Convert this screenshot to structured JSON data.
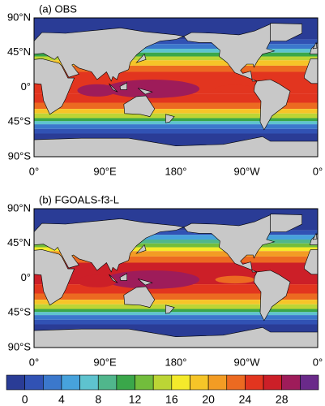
{
  "chart_data": {
    "type": "map",
    "panels": [
      {
        "title": "(a) OBS",
        "warm": 0
      },
      {
        "title": "(b) FGOALS-f3-L",
        "warm": 1
      }
    ],
    "lat_labels": [
      "90°N",
      "45°N",
      "0°",
      "45°S",
      "90°S"
    ],
    "lon_labels": [
      "0°",
      "90°E",
      "180°",
      "90°W",
      "0°"
    ],
    "colorbar": {
      "levels": [
        0,
        2,
        4,
        6,
        8,
        10,
        12,
        14,
        16,
        18,
        20,
        22,
        24,
        26,
        28,
        30
      ],
      "ticks": [
        0,
        4,
        8,
        12,
        16,
        20,
        24,
        28
      ],
      "colors": [
        "#2a3c96",
        "#3152b4",
        "#3b78cc",
        "#47a2dc",
        "#5ec3cf",
        "#50b68c",
        "#3aa74a",
        "#72bd3c",
        "#bcd535",
        "#f4ea2b",
        "#f6c528",
        "#f39c24",
        "#ec6a21",
        "#e2351f",
        "#cc1f28",
        "#9e1c5a",
        "#6a2a8a"
      ]
    }
  }
}
